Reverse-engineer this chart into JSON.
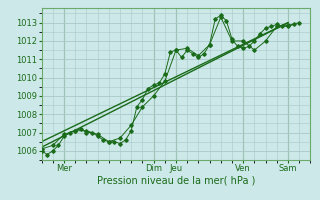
{
  "bg_color": "#cde8e8",
  "grid_color": "#aac8c8",
  "line_color": "#1a6b1a",
  "marker_color": "#1a6b1a",
  "xlabel": "Pression niveau de la mer( hPa )",
  "xlabel_color": "#1a6b1a",
  "tick_color": "#1a6b1a",
  "spine_color": "#6aaa6a",
  "ylim": [
    1005.5,
    1013.8
  ],
  "yticks": [
    1006,
    1007,
    1008,
    1009,
    1010,
    1011,
    1012,
    1013
  ],
  "xlim": [
    0,
    288
  ],
  "xtick_positions": [
    24,
    120,
    144,
    216,
    264
  ],
  "xtick_labels": [
    "Mer",
    "Dim",
    "Jeu",
    "Ven",
    "Sam"
  ],
  "series1_x": [
    0,
    6,
    12,
    18,
    24,
    30,
    36,
    42,
    48,
    54,
    60,
    66,
    72,
    78,
    84,
    90,
    96,
    102,
    108,
    114,
    120,
    126,
    132,
    138,
    144,
    150,
    156,
    162,
    168,
    174,
    180,
    186,
    192,
    198,
    204,
    210,
    216,
    222,
    228,
    234,
    240,
    246,
    252,
    258,
    264,
    270
  ],
  "series1_y": [
    1006.0,
    1005.8,
    1006.0,
    1006.3,
    1006.8,
    1007.0,
    1007.1,
    1007.2,
    1007.0,
    1007.0,
    1006.8,
    1006.6,
    1006.5,
    1006.5,
    1006.4,
    1006.6,
    1007.1,
    1008.4,
    1008.8,
    1009.4,
    1009.6,
    1009.7,
    1010.2,
    1011.4,
    1011.5,
    1011.1,
    1011.5,
    1011.3,
    1011.1,
    1011.3,
    1011.8,
    1013.2,
    1013.4,
    1013.1,
    1012.1,
    1011.7,
    1011.6,
    1011.7,
    1012.0,
    1012.4,
    1012.7,
    1012.8,
    1012.9,
    1012.8,
    1012.8,
    1012.9
  ],
  "series2_x": [
    0,
    12,
    24,
    36,
    48,
    60,
    72,
    84,
    96,
    108,
    120,
    132,
    144,
    156,
    168,
    180,
    192,
    204,
    216,
    228,
    240,
    252,
    264,
    276
  ],
  "series2_y": [
    1006.1,
    1006.3,
    1006.9,
    1007.1,
    1007.1,
    1006.9,
    1006.5,
    1006.7,
    1007.4,
    1008.4,
    1009.0,
    1009.8,
    1011.5,
    1011.6,
    1011.2,
    1011.8,
    1013.3,
    1012.0,
    1012.0,
    1011.5,
    1012.0,
    1012.8,
    1012.85,
    1013.0
  ],
  "trend1_x": [
    0,
    264
  ],
  "trend1_y": [
    1006.2,
    1013.0
  ],
  "trend2_x": [
    0,
    264
  ],
  "trend2_y": [
    1006.5,
    1013.0
  ]
}
